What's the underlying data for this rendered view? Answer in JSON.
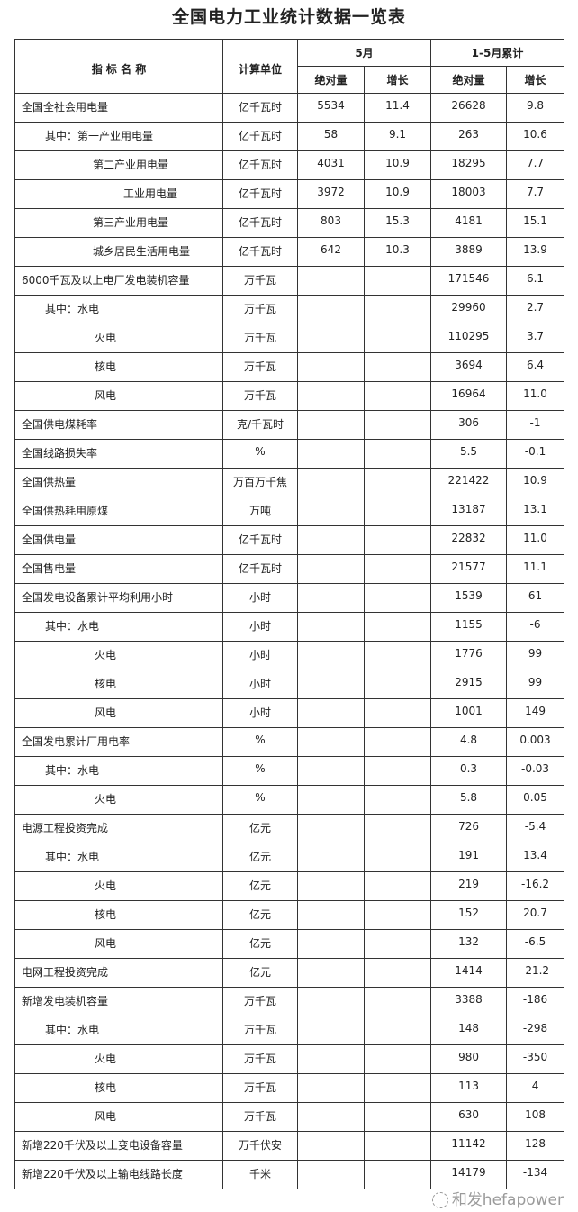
{
  "title": "全国电力工业统计数据一览表",
  "header": {
    "name": "指 标 名 称",
    "unit": "计算单位",
    "may": "5月",
    "cum": "1-5月累计",
    "abs": "绝对量",
    "growth": "增长"
  },
  "rows": [
    {
      "name": "全国全社会用电量",
      "level": 0,
      "unit": "亿千瓦时",
      "may_abs": "5534",
      "may_g": "11.4",
      "cum_abs": "26628",
      "cum_g": "9.8"
    },
    {
      "name": "其中：第一产业用电量",
      "level": 1,
      "unit": "亿千瓦时",
      "may_abs": "58",
      "may_g": "9.1",
      "cum_abs": "263",
      "cum_g": "10.6"
    },
    {
      "name": "第二产业用电量",
      "level": 2,
      "unit": "亿千瓦时",
      "may_abs": "4031",
      "may_g": "10.9",
      "cum_abs": "18295",
      "cum_g": "7.7"
    },
    {
      "name": "工业用电量",
      "level": 3,
      "unit": "亿千瓦时",
      "may_abs": "3972",
      "may_g": "10.9",
      "cum_abs": "18003",
      "cum_g": "7.7"
    },
    {
      "name": "第三产业用电量",
      "level": 2,
      "unit": "亿千瓦时",
      "may_abs": "803",
      "may_g": "15.3",
      "cum_abs": "4181",
      "cum_g": "15.1"
    },
    {
      "name": "城乡居民生活用电量",
      "level": 2,
      "unit": "亿千瓦时",
      "may_abs": "642",
      "may_g": "10.3",
      "cum_abs": "3889",
      "cum_g": "13.9"
    },
    {
      "name": "6000千瓦及以上电厂发电装机容量",
      "level": 0,
      "unit": "万千瓦",
      "may_abs": "",
      "may_g": "",
      "cum_abs": "171546",
      "cum_g": "6.1"
    },
    {
      "name": "其中：水电",
      "level": 1,
      "unit": "万千瓦",
      "may_abs": "",
      "may_g": "",
      "cum_abs": "29960",
      "cum_g": "2.7"
    },
    {
      "name": "火电",
      "level": 4,
      "unit": "万千瓦",
      "may_abs": "",
      "may_g": "",
      "cum_abs": "110295",
      "cum_g": "3.7"
    },
    {
      "name": "核电",
      "level": 4,
      "unit": "万千瓦",
      "may_abs": "",
      "may_g": "",
      "cum_abs": "3694",
      "cum_g": "6.4"
    },
    {
      "name": "风电",
      "level": 4,
      "unit": "万千瓦",
      "may_abs": "",
      "may_g": "",
      "cum_abs": "16964",
      "cum_g": "11.0"
    },
    {
      "name": "全国供电煤耗率",
      "level": 0,
      "unit": "克/千瓦时",
      "may_abs": "",
      "may_g": "",
      "cum_abs": "306",
      "cum_g": "-1"
    },
    {
      "name": "全国线路损失率",
      "level": 0,
      "unit": "%",
      "may_abs": "",
      "may_g": "",
      "cum_abs": "5.5",
      "cum_g": "-0.1"
    },
    {
      "name": "全国供热量",
      "level": 0,
      "unit": "万百万千焦",
      "may_abs": "",
      "may_g": "",
      "cum_abs": "221422",
      "cum_g": "10.9"
    },
    {
      "name": "全国供热耗用原煤",
      "level": 0,
      "unit": "万吨",
      "may_abs": "",
      "may_g": "",
      "cum_abs": "13187",
      "cum_g": "13.1"
    },
    {
      "name": "全国供电量",
      "level": 0,
      "unit": "亿千瓦时",
      "may_abs": "",
      "may_g": "",
      "cum_abs": "22832",
      "cum_g": "11.0"
    },
    {
      "name": "全国售电量",
      "level": 0,
      "unit": "亿千瓦时",
      "may_abs": "",
      "may_g": "",
      "cum_abs": "21577",
      "cum_g": "11.1"
    },
    {
      "name": "全国发电设备累计平均利用小时",
      "level": 0,
      "unit": "小时",
      "may_abs": "",
      "may_g": "",
      "cum_abs": "1539",
      "cum_g": "61"
    },
    {
      "name": "其中：水电",
      "level": 1,
      "unit": "小时",
      "may_abs": "",
      "may_g": "",
      "cum_abs": "1155",
      "cum_g": "-6"
    },
    {
      "name": "火电",
      "level": 4,
      "unit": "小时",
      "may_abs": "",
      "may_g": "",
      "cum_abs": "1776",
      "cum_g": "99"
    },
    {
      "name": "核电",
      "level": 4,
      "unit": "小时",
      "may_abs": "",
      "may_g": "",
      "cum_abs": "2915",
      "cum_g": "99"
    },
    {
      "name": "风电",
      "level": 4,
      "unit": "小时",
      "may_abs": "",
      "may_g": "",
      "cum_abs": "1001",
      "cum_g": "149"
    },
    {
      "name": "全国发电累计厂用电率",
      "level": 0,
      "unit": "%",
      "may_abs": "",
      "may_g": "",
      "cum_abs": "4.8",
      "cum_g": "0.003"
    },
    {
      "name": "其中：水电",
      "level": 1,
      "unit": "%",
      "may_abs": "",
      "may_g": "",
      "cum_abs": "0.3",
      "cum_g": "-0.03"
    },
    {
      "name": "火电",
      "level": 4,
      "unit": "%",
      "may_abs": "",
      "may_g": "",
      "cum_abs": "5.8",
      "cum_g": "0.05"
    },
    {
      "name": "电源工程投资完成",
      "level": 0,
      "unit": "亿元",
      "may_abs": "",
      "may_g": "",
      "cum_abs": "726",
      "cum_g": "-5.4"
    },
    {
      "name": "其中：水电",
      "level": 1,
      "unit": "亿元",
      "may_abs": "",
      "may_g": "",
      "cum_abs": "191",
      "cum_g": "13.4"
    },
    {
      "name": "火电",
      "level": 4,
      "unit": "亿元",
      "may_abs": "",
      "may_g": "",
      "cum_abs": "219",
      "cum_g": "-16.2"
    },
    {
      "name": "核电",
      "level": 4,
      "unit": "亿元",
      "may_abs": "",
      "may_g": "",
      "cum_abs": "152",
      "cum_g": "20.7"
    },
    {
      "name": "风电",
      "level": 4,
      "unit": "亿元",
      "may_abs": "",
      "may_g": "",
      "cum_abs": "132",
      "cum_g": "-6.5"
    },
    {
      "name": "电网工程投资完成",
      "level": 0,
      "unit": "亿元",
      "may_abs": "",
      "may_g": "",
      "cum_abs": "1414",
      "cum_g": "-21.2"
    },
    {
      "name": "新增发电装机容量",
      "level": 0,
      "unit": "万千瓦",
      "may_abs": "",
      "may_g": "",
      "cum_abs": "3388",
      "cum_g": "-186"
    },
    {
      "name": "其中：水电",
      "level": 1,
      "unit": "万千瓦",
      "may_abs": "",
      "may_g": "",
      "cum_abs": "148",
      "cum_g": "-298"
    },
    {
      "name": "火电",
      "level": 4,
      "unit": "万千瓦",
      "may_abs": "",
      "may_g": "",
      "cum_abs": "980",
      "cum_g": "-350"
    },
    {
      "name": "核电",
      "level": 4,
      "unit": "万千瓦",
      "may_abs": "",
      "may_g": "",
      "cum_abs": "113",
      "cum_g": "4"
    },
    {
      "name": "风电",
      "level": 4,
      "unit": "万千瓦",
      "may_abs": "",
      "may_g": "",
      "cum_abs": "630",
      "cum_g": "108"
    },
    {
      "name": "新增220千伏及以上变电设备容量",
      "level": 0,
      "unit": "万千伏安",
      "may_abs": "",
      "may_g": "",
      "cum_abs": "11142",
      "cum_g": "128"
    },
    {
      "name": "新增220千伏及以上输电线路长度",
      "level": 0,
      "unit": "千米",
      "may_abs": "",
      "may_g": "",
      "cum_abs": "14179",
      "cum_g": "-134"
    }
  ],
  "watermark": "和发hefapower"
}
